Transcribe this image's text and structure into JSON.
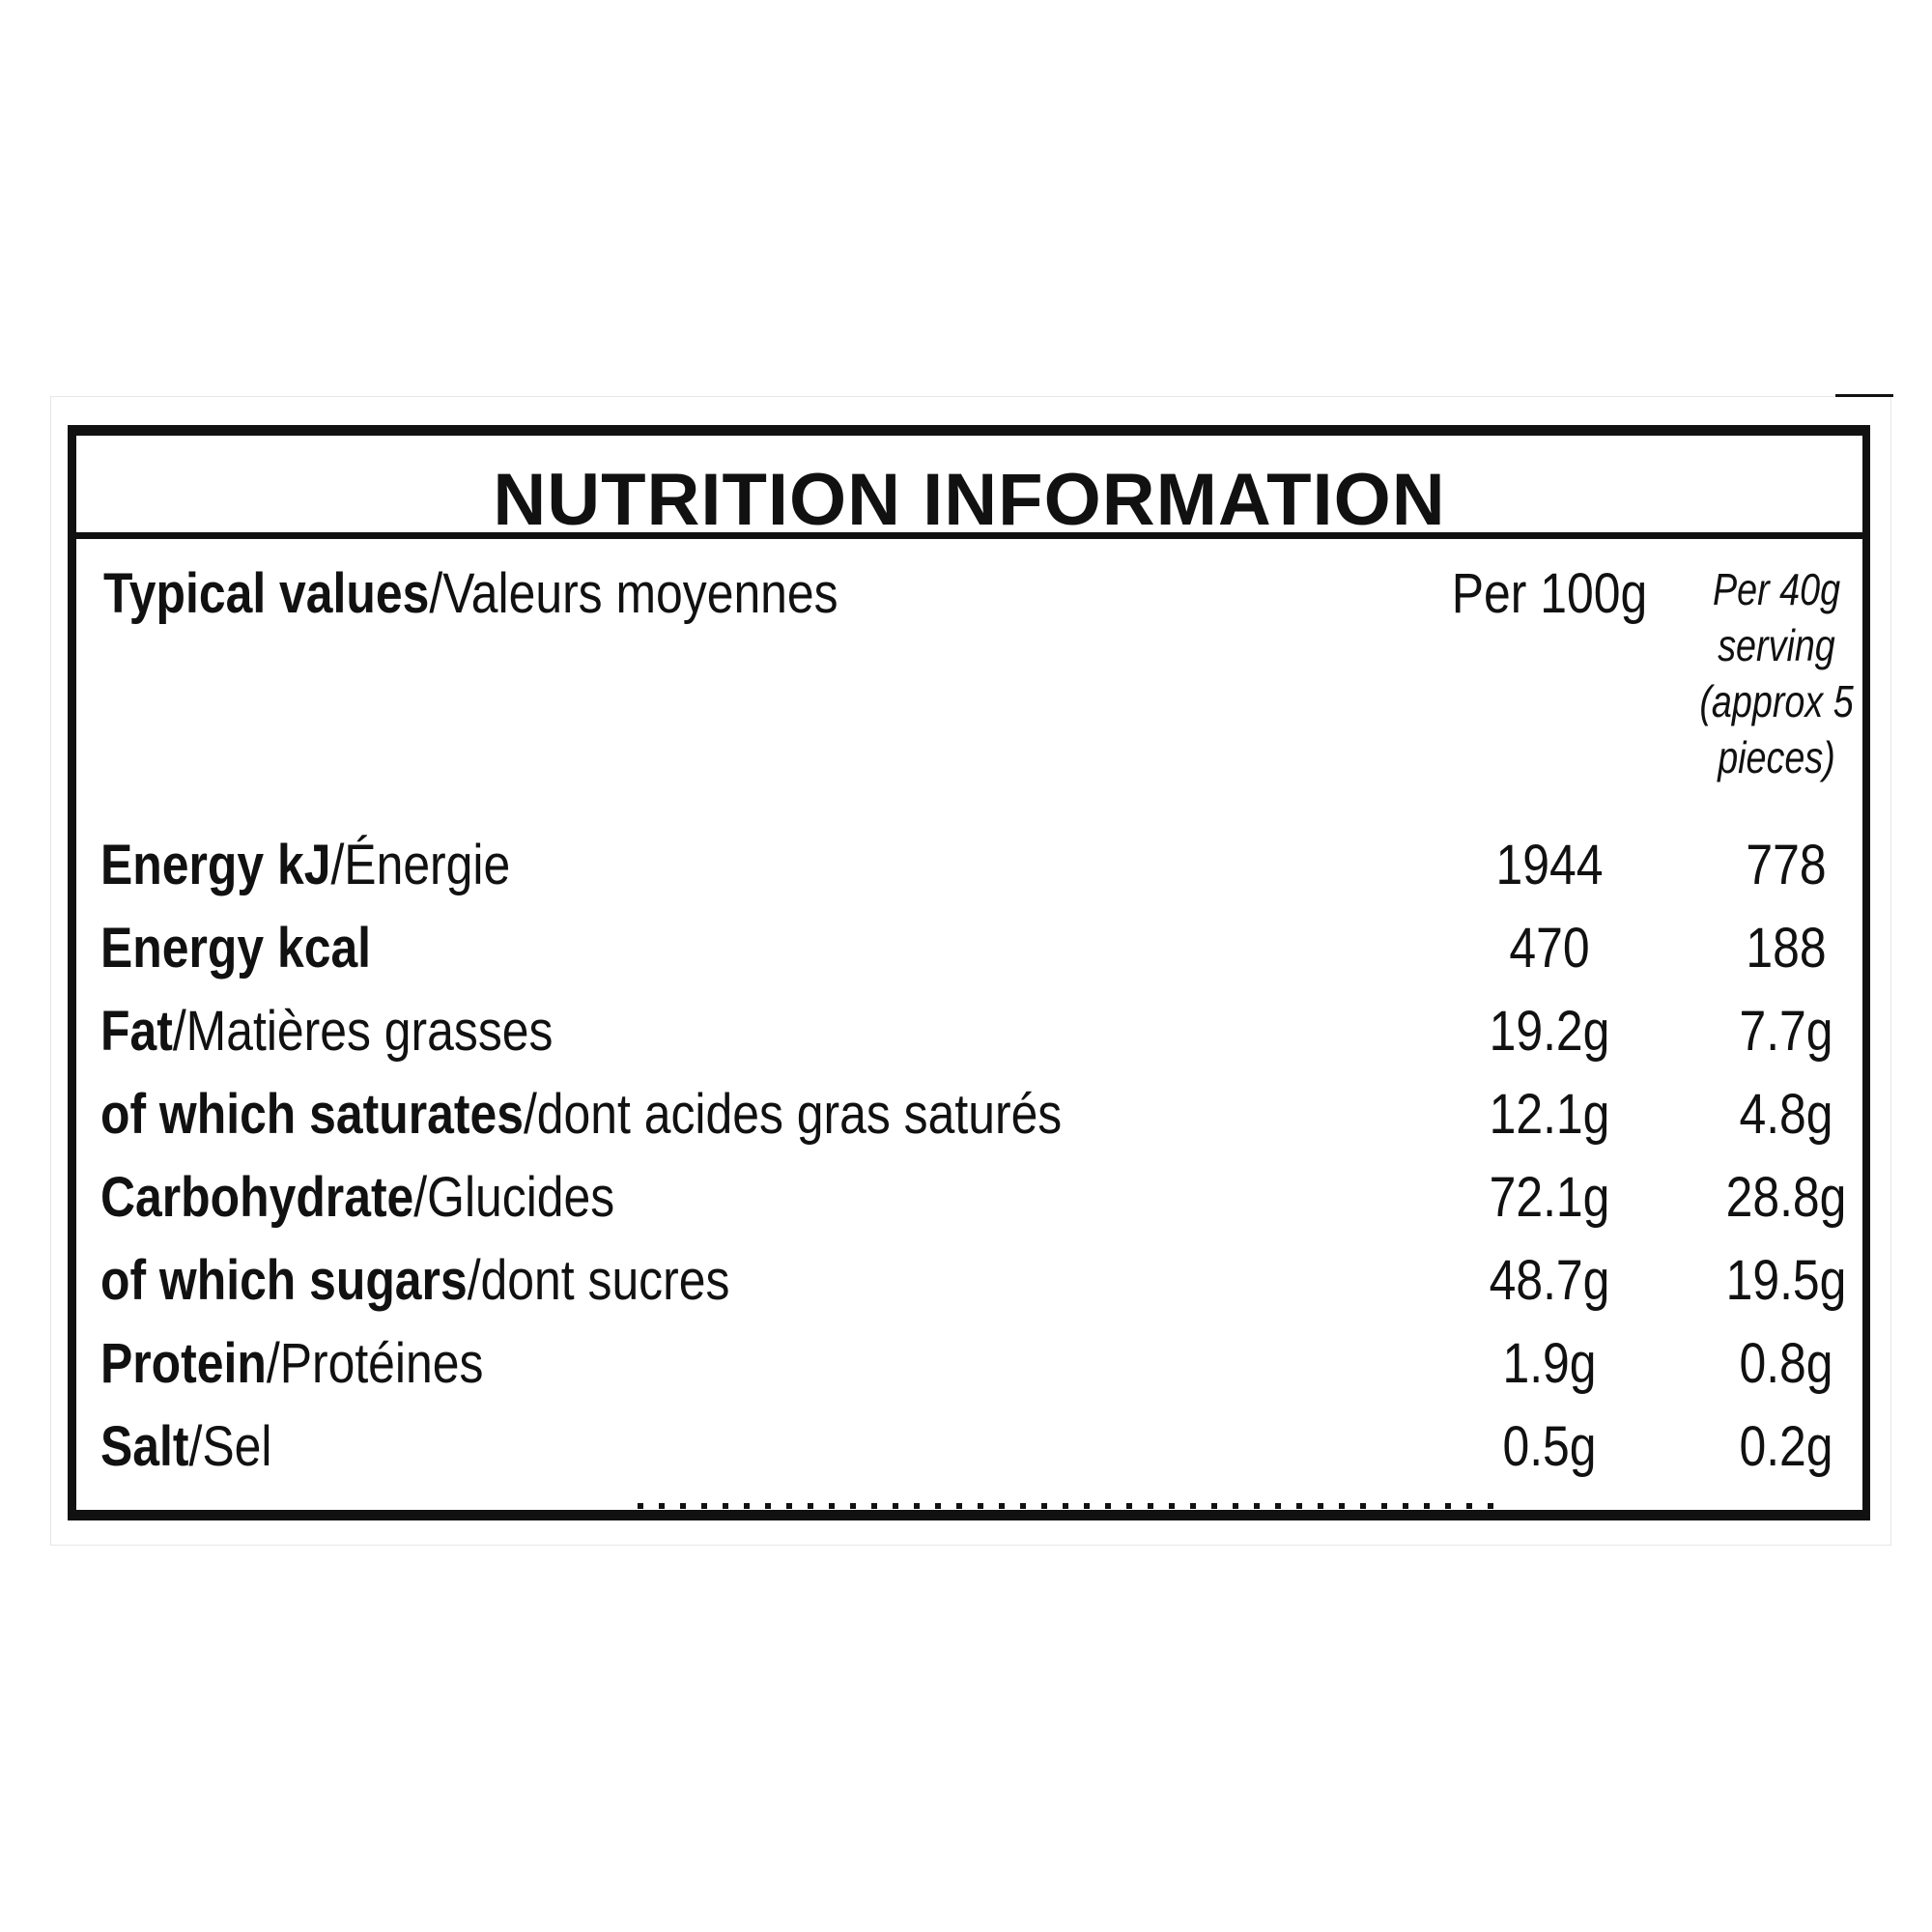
{
  "label": {
    "title": "NUTRITION INFORMATION",
    "header": {
      "typical_values_en": "Typical values",
      "typical_values_fr": "/Valeurs moyennes",
      "per_100g": "Per 100g",
      "per_serving_lines": [
        "Per 40g",
        "serving",
        "(approx 5",
        "pieces)"
      ]
    },
    "rows": [
      {
        "name_en": "Energy kJ",
        "name_fr": "/Énergie",
        "per_100g": "1944",
        "per_serving": "778"
      },
      {
        "name_en": "Energy kcal",
        "name_fr": "",
        "per_100g": "470",
        "per_serving": "188"
      },
      {
        "name_en": "Fat",
        "name_fr": "/Matières grasses",
        "per_100g": "19.2g",
        "per_serving": "7.7g"
      },
      {
        "name_en": "of which saturates",
        "name_fr": "/dont acides gras saturés",
        "per_100g": "12.1g",
        "per_serving": "4.8g"
      },
      {
        "name_en": "Carbohydrate",
        "name_fr": "/Glucides",
        "per_100g": "72.1g",
        "per_serving": "28.8g"
      },
      {
        "name_en": "of which sugars",
        "name_fr": "/dont sucres",
        "per_100g": "48.7g",
        "per_serving": "19.5g"
      },
      {
        "name_en": "Protein",
        "name_fr": "/Protéines",
        "per_100g": "1.9g",
        "per_serving": "0.8g"
      },
      {
        "name_en": "Salt",
        "name_fr": "/Sel",
        "per_100g": "0.5g",
        "per_serving": "0.2g"
      }
    ]
  }
}
